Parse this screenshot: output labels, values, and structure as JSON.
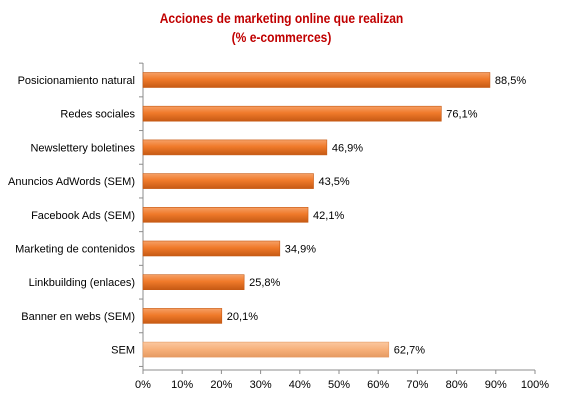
{
  "colors": {
    "title": "#c00000",
    "bar_primary": "#f07a2a",
    "bar_primary_edge": "#c65a14",
    "bar_highlight": "#f7b07a",
    "bar_highlight_edge": "#e59a62",
    "axis": "#8c8c8c",
    "text": "#000000"
  },
  "chart_data": {
    "type": "bar",
    "orientation": "horizontal",
    "title": "Acciones de marketing online que realizan",
    "subtitle": "(% e-commerces)",
    "categories": [
      "Posicionamiento natural",
      "Redes sociales",
      "Newslettery boletines",
      "Anuncios AdWords (SEM)",
      "Facebook Ads (SEM)",
      "Marketing de contenidos",
      "Linkbuilding (enlaces)",
      "Banner en webs (SEM)",
      "SEM"
    ],
    "values": [
      88.5,
      76.1,
      46.9,
      43.5,
      42.1,
      34.9,
      25.8,
      20.1,
      62.7
    ],
    "data_labels": [
      "88,5%",
      "76,1%",
      "46,9%",
      "43,5%",
      "42,1%",
      "34,9%",
      "25,8%",
      "20,1%",
      "62,7%"
    ],
    "highlighted_category": "SEM",
    "xlim": [
      0,
      100
    ],
    "xticks": [
      0,
      10,
      20,
      30,
      40,
      50,
      60,
      70,
      80,
      90,
      100
    ],
    "xtick_labels": [
      "0%",
      "10%",
      "20%",
      "30%",
      "40%",
      "50%",
      "60%",
      "70%",
      "80%",
      "90%",
      "100%"
    ],
    "grid": false,
    "legend": "none"
  }
}
